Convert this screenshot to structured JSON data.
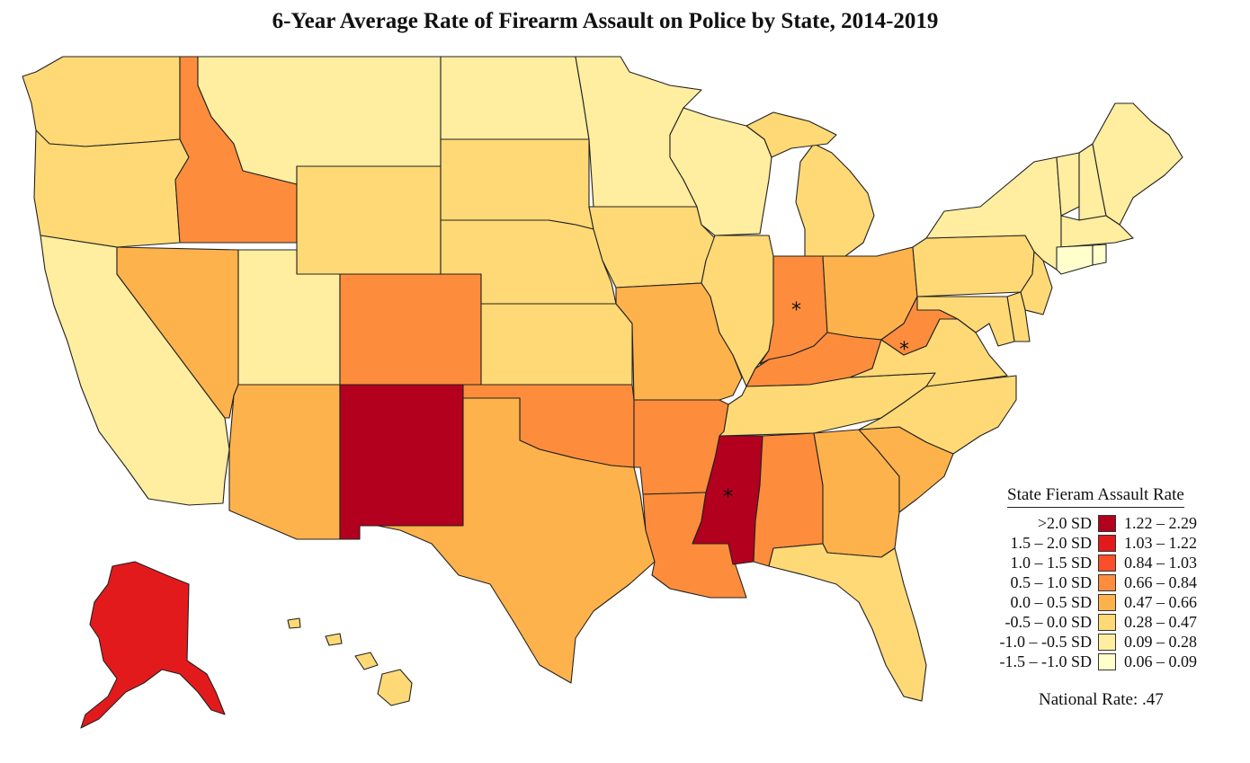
{
  "title": "6-Year Average Rate of Firearm Assault on Police by State, 2014-2019",
  "colors": {
    "c1": "#b3001f",
    "c2": "#e31a1c",
    "c3": "#fc4e2a",
    "c4": "#fd8d3c",
    "c5": "#feb24c",
    "c6": "#fed976",
    "c7": "#ffeda0",
    "c8": "#ffffcc"
  },
  "legend": {
    "title": "State Fieram Assault Rate",
    "rows": [
      {
        "sd": ">2.0 SD",
        "range": "1.22 – 2.29",
        "color": "#b3001f"
      },
      {
        "sd": "1.5 – 2.0 SD",
        "range": "1.03 – 1.22",
        "color": "#e31a1c"
      },
      {
        "sd": "1.0 – 1.5 SD",
        "range": "0.84 – 1.03",
        "color": "#fc4e2a"
      },
      {
        "sd": "0.5 – 1.0 SD",
        "range": "0.66 – 0.84",
        "color": "#fd8d3c"
      },
      {
        "sd": "0.0 – 0.5 SD",
        "range": "0.47 – 0.66",
        "color": "#feb24c"
      },
      {
        "sd": "-0.5 – 0.0 SD",
        "range": "0.28 – 0.47",
        "color": "#fed976"
      },
      {
        "sd": "-1.0 – -0.5 SD",
        "range": "0.09 – 0.28",
        "color": "#ffeda0"
      },
      {
        "sd": "-1.5 – -1.0 SD",
        "range": "0.06 – 0.09",
        "color": "#ffffcc"
      }
    ]
  },
  "national_rate": "National Rate: .47",
  "marker": "*",
  "states": {
    "WA": "c6",
    "OR": "c6",
    "CA": "c7",
    "ID": "c4",
    "NV": "c5",
    "MT": "c7",
    "WY": "c6",
    "UT": "c7",
    "AZ": "c5",
    "CO": "c4",
    "NM": "c1",
    "ND": "c7",
    "SD": "c6",
    "NE": "c6",
    "KS": "c6",
    "OK": "c4",
    "TX": "c5",
    "MN": "c7",
    "IA": "c6",
    "MO": "c5",
    "AR": "c4",
    "LA": "c4",
    "WI": "c7",
    "IL": "c6",
    "MI": "c6",
    "IN": "c4",
    "OH": "c5",
    "KY": "c4",
    "TN": "c6",
    "MS": "c1",
    "AL": "c4",
    "GA": "c5",
    "FL": "c6",
    "SC": "c5",
    "NC": "c6",
    "VA": "c6",
    "WV": "c4",
    "PA": "c6",
    "NY": "c7",
    "VT": "c7",
    "NH": "c7",
    "ME": "c7",
    "MA": "c7",
    "CT": "c8",
    "RI": "c8",
    "NJ": "c6",
    "DE": "c6",
    "MD": "c6",
    "AK": "c2",
    "HI": "c6"
  }
}
